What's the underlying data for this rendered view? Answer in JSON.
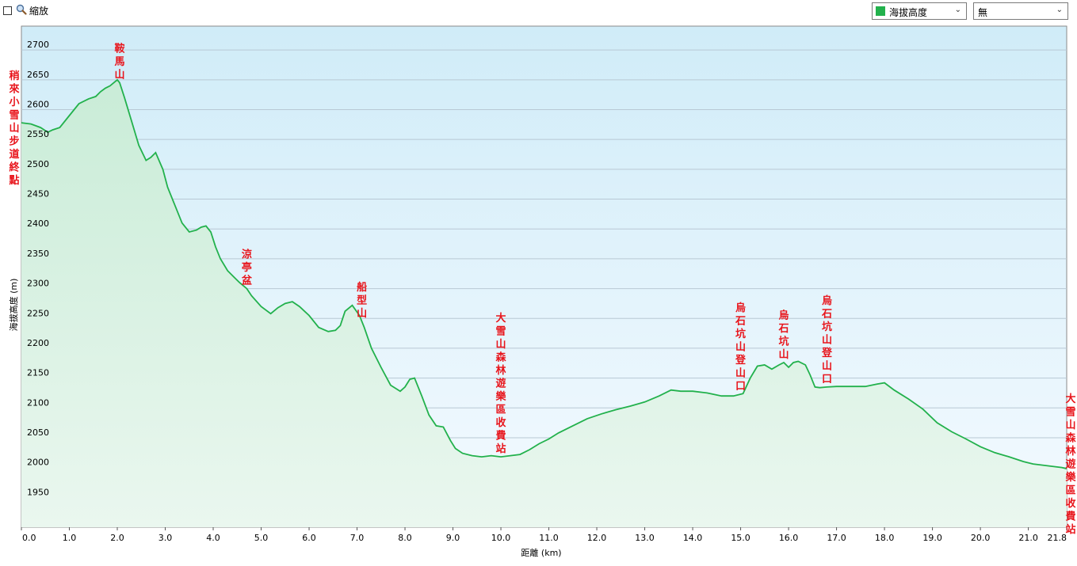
{
  "toolbar": {
    "zoom_checked": false,
    "zoom_label": "縮放",
    "series_select": {
      "selected": "海拔高度",
      "swatch_color": "#22b14c"
    },
    "second_select": {
      "selected": "無"
    }
  },
  "chart_data": {
    "type": "area",
    "xlabel": "距離 (km)",
    "ylabel": "海拔高度 (m)",
    "xlim": [
      0,
      21.8
    ],
    "ylim": [
      1900,
      2740
    ],
    "x_ticks": [
      0.0,
      1.0,
      2.0,
      3.0,
      4.0,
      5.0,
      6.0,
      7.0,
      8.0,
      9.0,
      10.0,
      11.0,
      12.0,
      13.0,
      14.0,
      15.0,
      16.0,
      17.0,
      18.0,
      19.0,
      20.0,
      21.0,
      21.8
    ],
    "x_tick_labels": [
      "0.0",
      "1.0",
      "2.0",
      "3.0",
      "4.0",
      "5.0",
      "6.0",
      "7.0",
      "8.0",
      "9.0",
      "10.0",
      "11.0",
      "12.0",
      "13.0",
      "14.0",
      "15.0",
      "16.0",
      "17.0",
      "18.0",
      "19.0",
      "20.0",
      "21.0",
      "21.8"
    ],
    "y_ticks": [
      1950,
      2000,
      2050,
      2100,
      2150,
      2200,
      2250,
      2300,
      2350,
      2400,
      2450,
      2500,
      2550,
      2600,
      2650,
      2700
    ],
    "grid": true,
    "line_color": "#22b14c",
    "series": [
      {
        "x": [
          0.0,
          0.2,
          0.4,
          0.55,
          0.65,
          0.8,
          1.0,
          1.2,
          1.4,
          1.55,
          1.65,
          1.75,
          1.85,
          2.0,
          2.05,
          2.15,
          2.3,
          2.45,
          2.6,
          2.7,
          2.8,
          2.95,
          3.05,
          3.2,
          3.35,
          3.5,
          3.65,
          3.75,
          3.85,
          3.95,
          4.05,
          4.15,
          4.3,
          4.45,
          4.55,
          4.7,
          4.8,
          5.0,
          5.2,
          5.35,
          5.5,
          5.65,
          5.8,
          6.0,
          6.2,
          6.4,
          6.55,
          6.65,
          6.75,
          6.9,
          7.05,
          7.15,
          7.3,
          7.5,
          7.7,
          7.9,
          8.0,
          8.1,
          8.2,
          8.35,
          8.5,
          8.65,
          8.8,
          8.95,
          9.05,
          9.2,
          9.4,
          9.6,
          9.8,
          10.0,
          10.2,
          10.4,
          10.6,
          10.8,
          11.0,
          11.2,
          11.5,
          11.8,
          12.1,
          12.4,
          12.7,
          13.0,
          13.3,
          13.55,
          13.75,
          14.0,
          14.3,
          14.6,
          14.85,
          15.05,
          15.2,
          15.35,
          15.5,
          15.65,
          15.8,
          15.9,
          16.0,
          16.1,
          16.2,
          16.35,
          16.45,
          16.55,
          16.65,
          16.8,
          17.0,
          17.3,
          17.6,
          17.85,
          18.0,
          18.2,
          18.5,
          18.8,
          19.1,
          19.4,
          19.7,
          20.0,
          20.3,
          20.6,
          20.9,
          21.1,
          21.3,
          21.5,
          21.7,
          21.8
        ],
        "y": [
          2578,
          2576,
          2570,
          2562,
          2566,
          2570,
          2590,
          2610,
          2618,
          2622,
          2630,
          2636,
          2640,
          2650,
          2645,
          2620,
          2580,
          2540,
          2515,
          2520,
          2528,
          2500,
          2470,
          2440,
          2410,
          2395,
          2398,
          2403,
          2405,
          2395,
          2370,
          2350,
          2330,
          2318,
          2310,
          2300,
          2288,
          2270,
          2258,
          2268,
          2275,
          2278,
          2270,
          2255,
          2235,
          2228,
          2230,
          2238,
          2262,
          2272,
          2255,
          2235,
          2200,
          2168,
          2138,
          2128,
          2135,
          2148,
          2150,
          2120,
          2088,
          2070,
          2068,
          2045,
          2032,
          2024,
          2020,
          2018,
          2020,
          2018,
          2020,
          2022,
          2030,
          2040,
          2048,
          2058,
          2070,
          2082,
          2090,
          2097,
          2103,
          2110,
          2120,
          2130,
          2128,
          2128,
          2125,
          2120,
          2120,
          2124,
          2150,
          2170,
          2172,
          2165,
          2172,
          2176,
          2168,
          2176,
          2178,
          2172,
          2155,
          2135,
          2134,
          2135,
          2136,
          2136,
          2136,
          2140,
          2142,
          2130,
          2115,
          2098,
          2075,
          2060,
          2048,
          2035,
          2025,
          2018,
          2010,
          2006,
          2004,
          2002,
          2000,
          1998
        ]
      }
    ],
    "annotations": [
      {
        "x": 0.0,
        "text": "稍來小雪山步道終點"
      },
      {
        "x": 2.05,
        "text": "鞍馬山"
      },
      {
        "x": 4.7,
        "text": "涼亭盆"
      },
      {
        "x": 7.1,
        "text": "船型山"
      },
      {
        "x": 10.0,
        "text": "大雪山森林遊樂區收費站"
      },
      {
        "x": 15.0,
        "text": "烏石坑山登山口"
      },
      {
        "x": 15.9,
        "text": "烏石坑山"
      },
      {
        "x": 16.8,
        "text": "烏石坑山登山口"
      },
      {
        "x": 21.8,
        "text": "大雪山森林遊樂區收費站"
      }
    ]
  }
}
